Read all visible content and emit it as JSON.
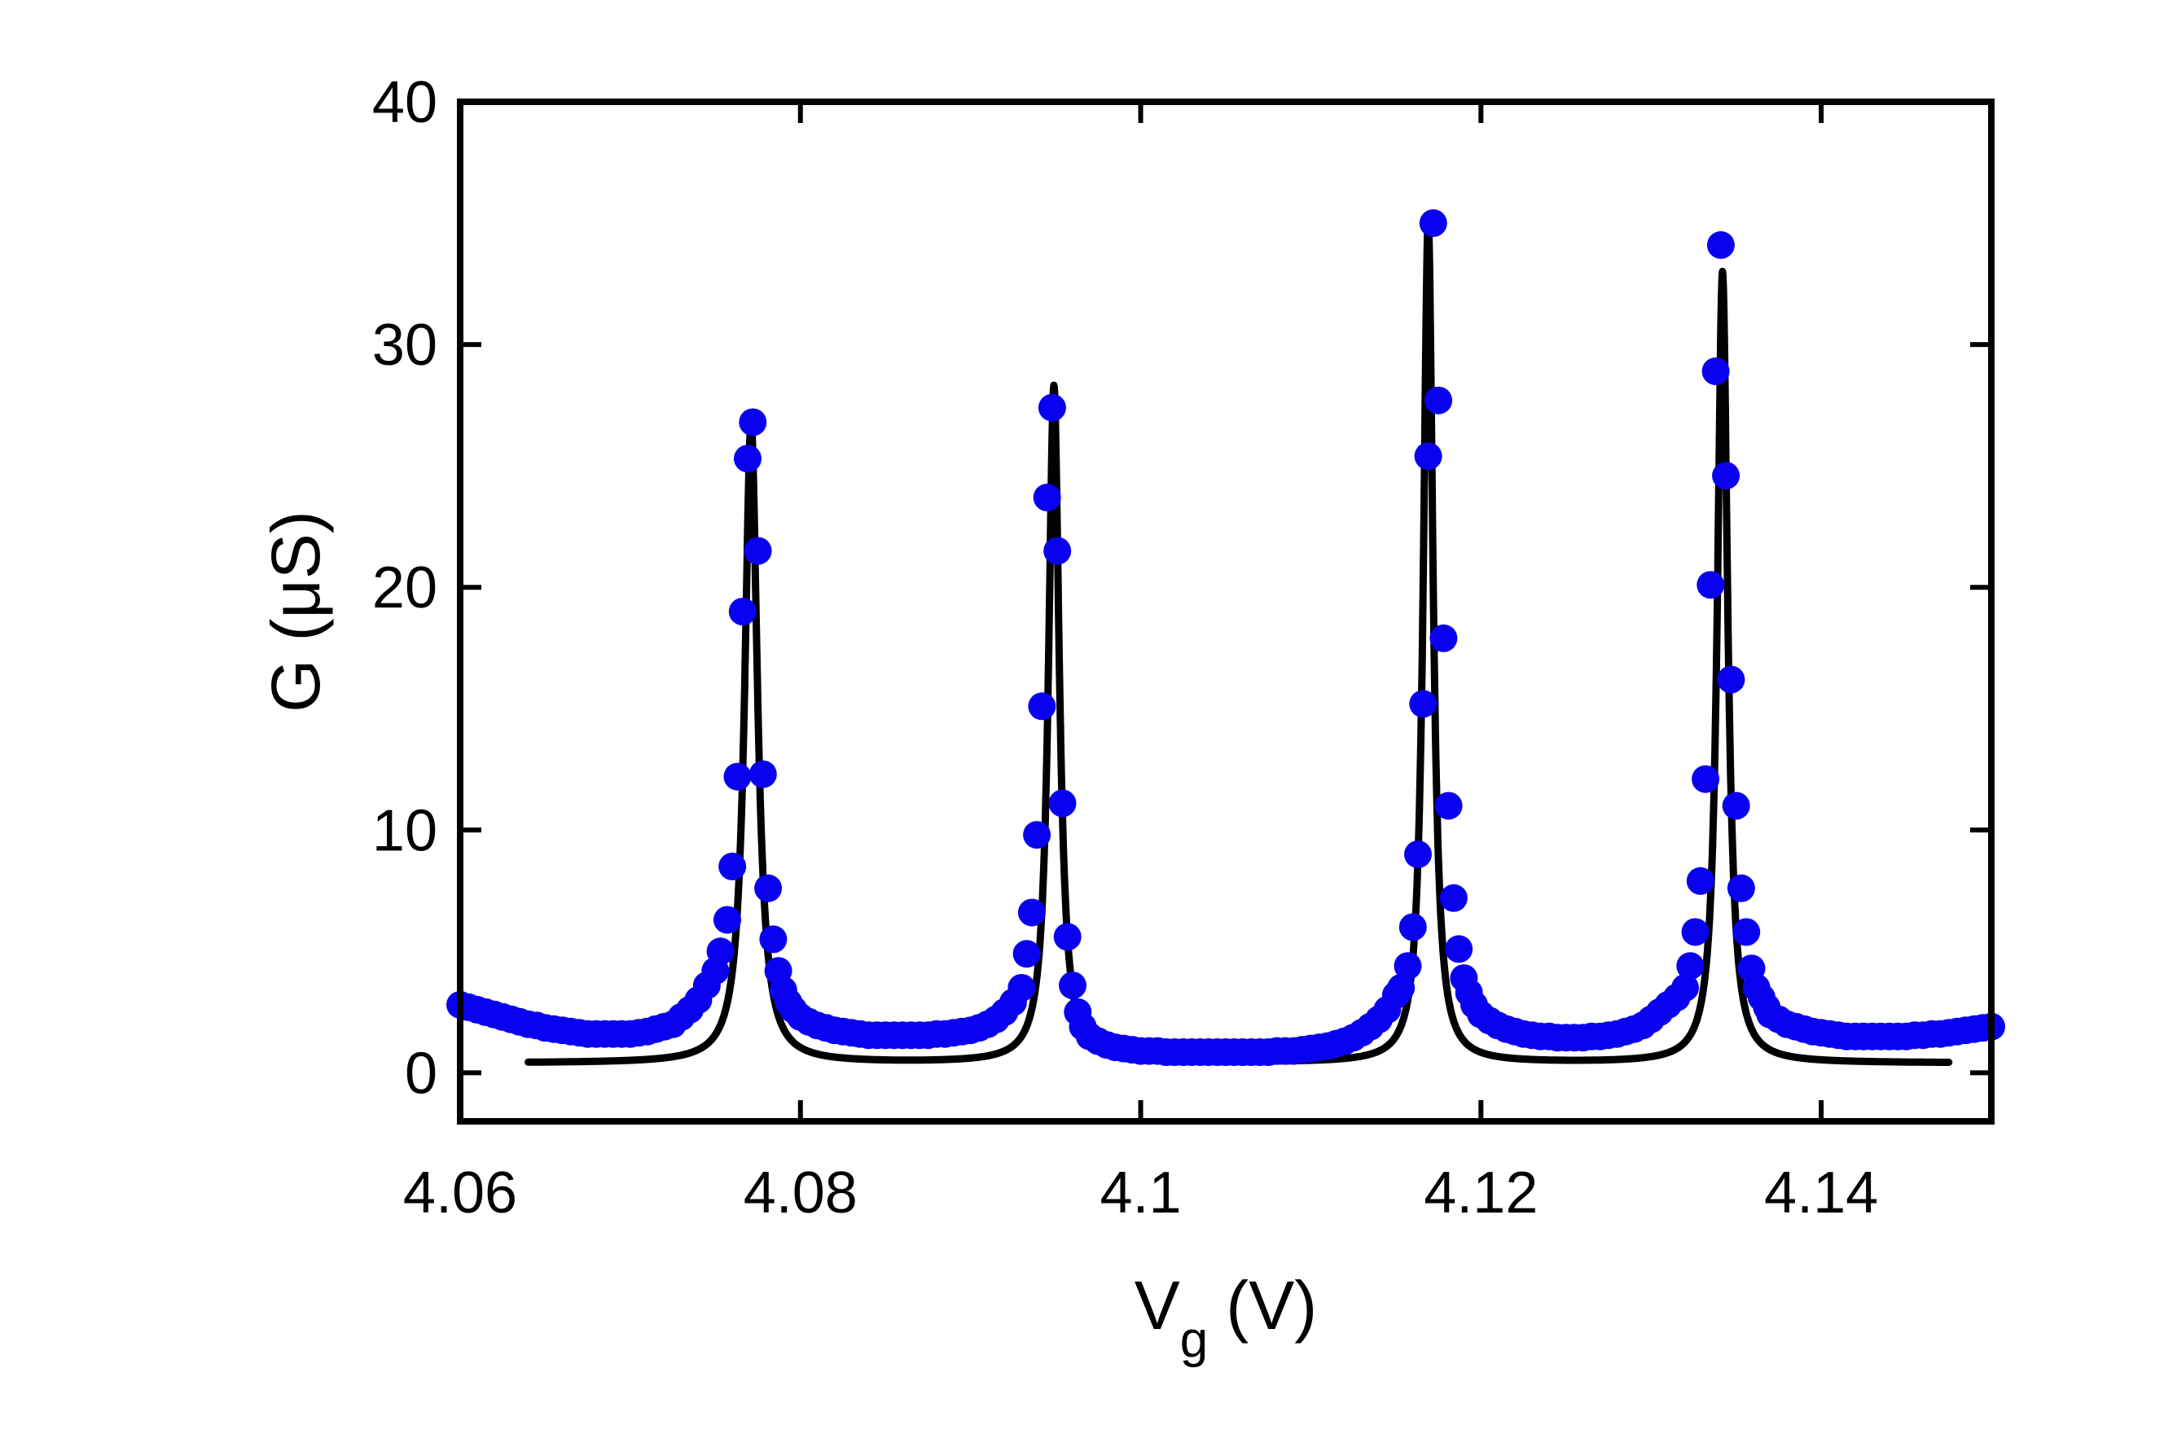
{
  "chart_data": {
    "type": "scatter",
    "title": "",
    "xlabel": {
      "main": "V",
      "sub": "g",
      "unit": "(V)"
    },
    "ylabel": {
      "main": "G",
      "unit": "(μS)"
    },
    "xlim": [
      4.06,
      4.15
    ],
    "ylim": [
      -2,
      40
    ],
    "xticks": [
      4.06,
      4.08,
      4.1,
      4.12,
      4.14
    ],
    "xtick_labels": [
      "4.06",
      "4.08",
      "4.1",
      "4.12",
      "4.14"
    ],
    "yticks": [
      0,
      10,
      20,
      30,
      40
    ],
    "ytick_labels": [
      "0",
      "10",
      "20",
      "30",
      "40"
    ],
    "grid": false,
    "legend": "none",
    "colors": {
      "data": "#0a00f0",
      "fit": "#000000",
      "axes": "#000000"
    },
    "series": [
      {
        "kind": "points",
        "color": "#0a00f0",
        "x": [
          4.06,
          4.0605,
          4.061,
          4.0615,
          4.062,
          4.0625,
          4.063,
          4.0635,
          4.064,
          4.0645,
          4.065,
          4.0655,
          4.066,
          4.0665,
          4.067,
          4.0675,
          4.068,
          4.0685,
          4.069,
          4.0695,
          4.07,
          4.0705,
          4.071,
          4.0715,
          4.072,
          4.0725,
          4.073,
          4.0735,
          4.074,
          4.0745,
          4.075,
          4.0753,
          4.0757,
          4.076,
          4.0763,
          4.0766,
          4.0769,
          4.0772,
          4.0775,
          4.0778,
          4.0781,
          4.0784,
          4.0787,
          4.079,
          4.0793,
          4.0796,
          4.08,
          4.0805,
          4.081,
          4.0815,
          4.082,
          4.0825,
          4.083,
          4.0835,
          4.084,
          4.0845,
          4.085,
          4.0855,
          4.086,
          4.0865,
          4.087,
          4.0875,
          4.088,
          4.0885,
          4.089,
          4.0895,
          4.09,
          4.0905,
          4.091,
          4.0915,
          4.092,
          4.0925,
          4.093,
          4.0933,
          4.0936,
          4.0939,
          4.0942,
          4.0945,
          4.0948,
          4.0951,
          4.0954,
          4.0957,
          4.096,
          4.0963,
          4.0966,
          4.097,
          4.0975,
          4.098,
          4.0985,
          4.099,
          4.0995,
          4.1,
          4.1005,
          4.101,
          4.1015,
          4.102,
          4.1025,
          4.103,
          4.1035,
          4.104,
          4.1045,
          4.105,
          4.1055,
          4.106,
          4.1065,
          4.107,
          4.1075,
          4.108,
          4.1085,
          4.109,
          4.1095,
          4.11,
          4.1105,
          4.111,
          4.1115,
          4.112,
          4.1125,
          4.113,
          4.1135,
          4.114,
          4.1145,
          4.115,
          4.1153,
          4.1157,
          4.116,
          4.1163,
          4.1166,
          4.1169,
          4.1172,
          4.1175,
          4.1178,
          4.1181,
          4.1184,
          4.1187,
          4.119,
          4.1193,
          4.1196,
          4.12,
          4.1205,
          4.121,
          4.1215,
          4.122,
          4.1225,
          4.123,
          4.1235,
          4.124,
          4.1245,
          4.125,
          4.1255,
          4.126,
          4.1265,
          4.127,
          4.1275,
          4.128,
          4.1285,
          4.129,
          4.1295,
          4.13,
          4.1305,
          4.131,
          4.1315,
          4.132,
          4.1323,
          4.1326,
          4.1329,
          4.1332,
          4.1335,
          4.1338,
          4.1341,
          4.1344,
          4.1347,
          4.135,
          4.1353,
          4.1356,
          4.1359,
          4.1362,
          4.1365,
          4.1368,
          4.137,
          4.1375,
          4.138,
          4.1385,
          4.139,
          4.1395,
          4.14,
          4.1405,
          4.141,
          4.1415,
          4.142,
          4.1425,
          4.143,
          4.1435,
          4.144,
          4.1445,
          4.145,
          4.1455,
          4.146,
          4.1465,
          4.147,
          4.1475,
          4.148,
          4.1485,
          4.149,
          4.1495,
          4.15
        ],
        "y": [
          2.8,
          2.7,
          2.6,
          2.5,
          2.4,
          2.3,
          2.2,
          2.1,
          2.0,
          1.95,
          1.85,
          1.8,
          1.75,
          1.7,
          1.65,
          1.6,
          1.6,
          1.6,
          1.6,
          1.6,
          1.6,
          1.65,
          1.7,
          1.8,
          1.9,
          2.0,
          2.3,
          2.6,
          3.0,
          3.6,
          4.2,
          5.0,
          6.3,
          8.5,
          12.2,
          19.0,
          25.3,
          26.8,
          21.5,
          12.3,
          7.6,
          5.5,
          4.2,
          3.4,
          2.9,
          2.6,
          2.3,
          2.1,
          1.95,
          1.85,
          1.75,
          1.7,
          1.65,
          1.6,
          1.55,
          1.55,
          1.55,
          1.55,
          1.55,
          1.55,
          1.55,
          1.55,
          1.6,
          1.6,
          1.65,
          1.7,
          1.75,
          1.85,
          2.0,
          2.2,
          2.5,
          2.9,
          3.5,
          4.9,
          6.6,
          9.8,
          15.1,
          23.7,
          27.4,
          21.5,
          11.1,
          5.6,
          3.6,
          2.5,
          1.9,
          1.5,
          1.3,
          1.15,
          1.05,
          1.0,
          0.95,
          0.9,
          0.9,
          0.9,
          0.85,
          0.85,
          0.85,
          0.85,
          0.85,
          0.85,
          0.85,
          0.85,
          0.85,
          0.85,
          0.85,
          0.85,
          0.85,
          0.9,
          0.9,
          0.9,
          0.95,
          1.0,
          1.05,
          1.1,
          1.2,
          1.3,
          1.45,
          1.65,
          1.9,
          2.2,
          2.6,
          3.2,
          3.5,
          4.4,
          6.0,
          9.0,
          15.2,
          25.4,
          35.0,
          27.7,
          17.9,
          11.0,
          7.2,
          5.1,
          3.9,
          3.3,
          2.8,
          2.4,
          2.15,
          1.95,
          1.8,
          1.7,
          1.6,
          1.55,
          1.5,
          1.5,
          1.45,
          1.45,
          1.45,
          1.45,
          1.5,
          1.5,
          1.55,
          1.6,
          1.7,
          1.8,
          1.95,
          2.2,
          2.5,
          2.8,
          3.1,
          3.5,
          4.4,
          5.8,
          7.9,
          12.1,
          20.1,
          28.9,
          34.1,
          24.6,
          16.2,
          11.0,
          7.6,
          5.8,
          4.3,
          3.5,
          3.1,
          2.7,
          2.4,
          2.2,
          2.0,
          1.9,
          1.8,
          1.7,
          1.65,
          1.6,
          1.55,
          1.5,
          1.5,
          1.5,
          1.5,
          1.5,
          1.5,
          1.5,
          1.5,
          1.55,
          1.55,
          1.6,
          1.6,
          1.65,
          1.7,
          1.75,
          1.8,
          1.85,
          1.9
        ]
      },
      {
        "kind": "line",
        "color": "#000000",
        "x_range": [
          4.064,
          4.1475
        ],
        "baseline": 0.4,
        "peaks": [
          {
            "center": 4.0771,
            "height": 26.4,
            "hwhm": 0.00045
          },
          {
            "center": 4.0949,
            "height": 27.9,
            "hwhm": 0.00038
          },
          {
            "center": 4.1169,
            "height": 34.7,
            "hwhm": 0.00034
          },
          {
            "center": 4.1342,
            "height": 32.6,
            "hwhm": 0.00036
          }
        ]
      }
    ]
  }
}
